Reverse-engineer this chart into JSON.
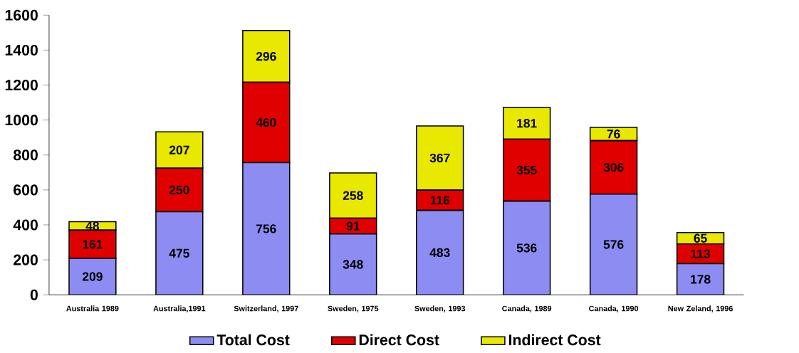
{
  "chart_data": {
    "type": "bar",
    "stacked": true,
    "categories": [
      "Australia 1989",
      "Australia,1991",
      "Switzerland, 1997",
      "Sweden, 1975",
      "Sweden, 1993",
      "Canada, 1989",
      "Canada, 1990",
      "New Zeland, 1996"
    ],
    "series": [
      {
        "name": "Total Cost",
        "color": "#8c8cf2",
        "values": [
          209,
          475,
          756,
          348,
          483,
          536,
          576,
          178
        ]
      },
      {
        "name": "Direct Cost",
        "color": "#e00000",
        "values": [
          161,
          250,
          460,
          91,
          116,
          355,
          306,
          113
        ]
      },
      {
        "name": "Indirect Cost",
        "color": "#e8e800",
        "values": [
          48,
          207,
          296,
          258,
          367,
          181,
          76,
          65
        ]
      }
    ],
    "ylim": [
      0,
      1600
    ],
    "yticks": [
      0,
      200,
      400,
      600,
      800,
      1000,
      1200,
      1400,
      1600
    ],
    "data_labels": true,
    "legend": "bottom",
    "grid": false
  }
}
